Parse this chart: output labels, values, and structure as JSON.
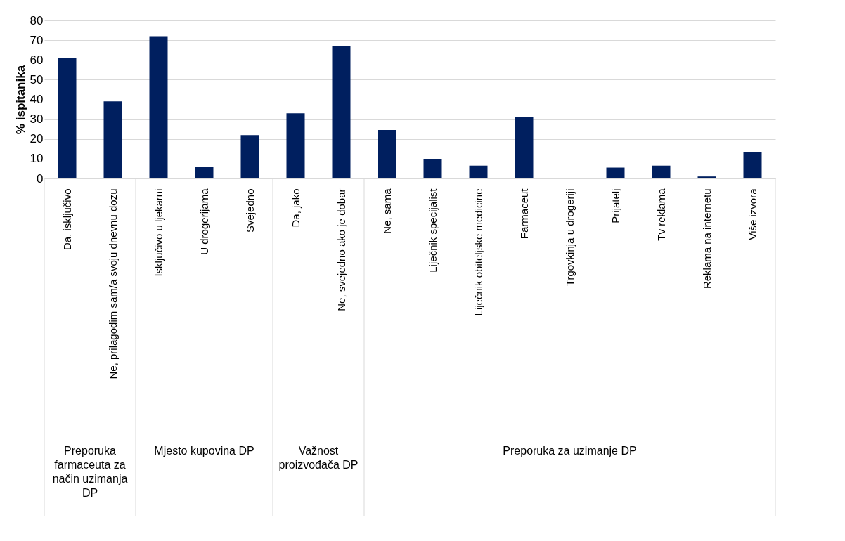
{
  "chart_data": {
    "type": "bar",
    "ylabel": "% ispitanika",
    "categories": [
      "Da, isključivo",
      "Ne, prilagodim sam/a svoju dnevnu dozu",
      "Isključivo u ljekarni",
      "U drogerijama",
      "Svejedno",
      "Da, jako",
      "Ne, svejedno ako je dobar",
      "Ne, sama",
      "Liječnik specijalist",
      "Liječnik obiteljske medicine",
      "Farmaceut",
      "Trgovkinja u drogeriji",
      "Prijatelj",
      "Tv reklama",
      "Reklama na internetu",
      "Više izvora"
    ],
    "values": [
      61,
      39,
      72,
      6,
      22,
      33,
      67,
      24.5,
      9.7,
      6.5,
      31,
      0,
      5.5,
      6.5,
      1,
      13.3
    ],
    "color": "#001f5f",
    "ylim": [
      0,
      80
    ],
    "yticks": [
      0,
      10,
      20,
      30,
      40,
      50,
      60,
      70,
      80
    ],
    "grid": "y",
    "annotations": [
      "Preporuka farmaceuta za način uzimanja DP",
      "Mjesto kupovina DP",
      "Važnost proizvođača DP",
      "Preporuka za uzimanje DP"
    ]
  }
}
